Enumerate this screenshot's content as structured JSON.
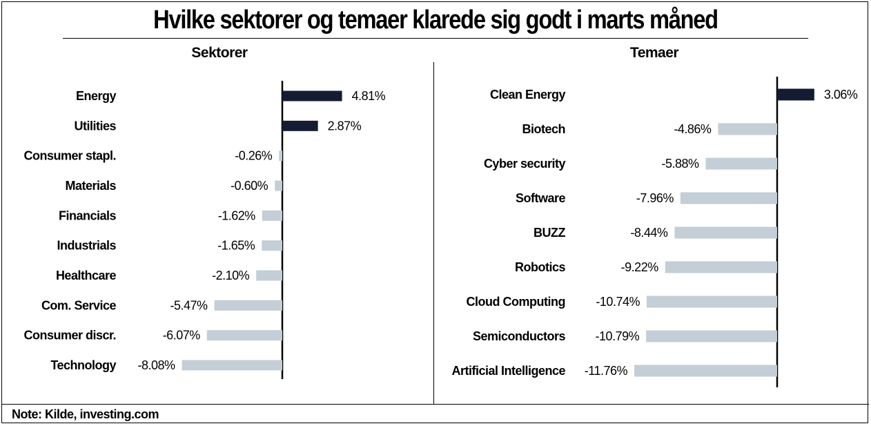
{
  "title": "Hvilke sektorer og temaer klarede sig godt i marts måned",
  "note": "Note: Kilde, investing.com",
  "colors": {
    "positive": "#141c33",
    "negative": "#c3ced6",
    "axis": "#000000"
  },
  "chart_data": [
    {
      "type": "bar",
      "orientation": "horizontal",
      "title": "Sektorer",
      "categories": [
        "Energy",
        "Utilities",
        "Consumer stapl.",
        "Materials",
        "Financials",
        "Industrials",
        "Healthcare",
        "Com. Service",
        "Consumer discr.",
        "Technology"
      ],
      "values": [
        4.81,
        2.87,
        -0.26,
        -0.6,
        -1.62,
        -1.65,
        -2.1,
        -5.47,
        -6.07,
        -8.08
      ],
      "labels": [
        "4.81%",
        "2.87%",
        "-0.26%",
        "-0.60%",
        "-1.62%",
        "-1.65%",
        "-2.10%",
        "-5.47%",
        "-6.07%",
        "-8.08%"
      ],
      "unit": "%"
    },
    {
      "type": "bar",
      "orientation": "horizontal",
      "title": "Temaer",
      "categories": [
        "Clean Energy",
        "Biotech",
        "Cyber security",
        "Software",
        "BUZZ",
        "Robotics",
        "Cloud Computing",
        "Semiconductors",
        "Artificial Intelligence"
      ],
      "values": [
        3.06,
        -4.86,
        -5.88,
        -7.96,
        -8.44,
        -9.22,
        -10.74,
        -10.79,
        -11.76
      ],
      "labels": [
        "3.06%",
        "-4.86%",
        "-5.88%",
        "-7.96%",
        "-8.44%",
        "-9.22%",
        "-10.74%",
        "-10.79%",
        "-11.76%"
      ],
      "unit": "%"
    }
  ]
}
